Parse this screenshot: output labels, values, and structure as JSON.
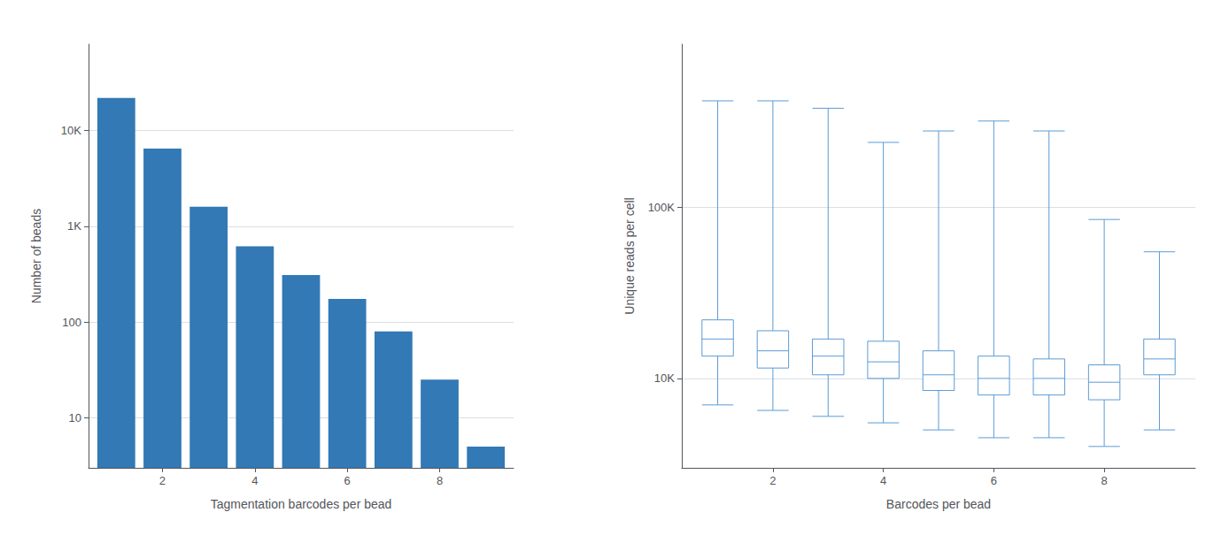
{
  "chart_data": [
    {
      "type": "bar",
      "x": [
        1,
        2,
        3,
        4,
        5,
        6,
        7,
        8,
        9
      ],
      "values": [
        22000,
        6500,
        1600,
        620,
        310,
        175,
        80,
        25,
        5
      ],
      "color": "#3279b5",
      "xlabel": "Tagmentation barcodes per bead",
      "ylabel": "Number of beads",
      "xlim": [
        0.4,
        9.6
      ],
      "xticks": [
        2,
        4,
        6,
        8
      ],
      "ylim": [
        3,
        80000
      ],
      "yticks": [
        10,
        100,
        {
          "value": 1000,
          "label": "1K"
        },
        {
          "value": 10000,
          "label": "10K"
        }
      ],
      "log": "y",
      "grid": true
    },
    {
      "type": "boxplot",
      "x": [
        1,
        2,
        3,
        4,
        5,
        6,
        7,
        8,
        9
      ],
      "values": [
        [
          7000,
          13500,
          17000,
          22000,
          420000
        ],
        [
          6500,
          11500,
          14500,
          19000,
          420000
        ],
        [
          6000,
          10500,
          13500,
          17000,
          380000
        ],
        [
          5500,
          10000,
          12500,
          16500,
          240000
        ],
        [
          5000,
          8500,
          10500,
          14500,
          280000
        ],
        [
          4500,
          8000,
          10000,
          13500,
          320000
        ],
        [
          4500,
          8000,
          10000,
          13000,
          280000
        ],
        [
          4000,
          7500,
          9500,
          12000,
          85000
        ],
        [
          5000,
          10500,
          13000,
          17000,
          55000
        ]
      ],
      "color": "#5b9bd5",
      "xlabel": "Barcodes per bead",
      "ylabel": "Unique reads per cell",
      "xlim": [
        0.35,
        9.65
      ],
      "xticks": [
        2,
        4,
        6,
        8
      ],
      "ylim": [
        3000,
        900000
      ],
      "yticks": [
        {
          "value": 10000,
          "label": "10K"
        },
        {
          "value": 100000,
          "label": "100K"
        }
      ],
      "log": "y",
      "grid": true
    }
  ]
}
